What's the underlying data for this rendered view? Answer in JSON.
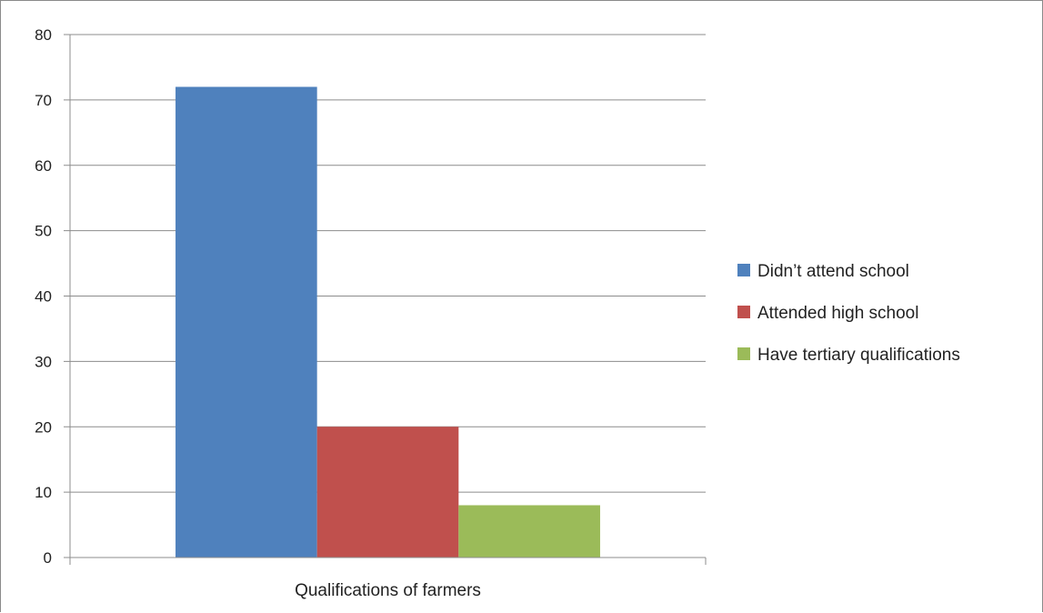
{
  "chart_data": {
    "type": "bar",
    "categories": [
      "Qualifications of farmers"
    ],
    "series": [
      {
        "name": "Didn’t attend school",
        "values": [
          72
        ],
        "color": "#4f81bd"
      },
      {
        "name": "Attended high school",
        "values": [
          20
        ],
        "color": "#c0504d"
      },
      {
        "name": "Have tertiary qualifications",
        "values": [
          8
        ],
        "color": "#9bbb59"
      }
    ],
    "title": "",
    "xlabel": "",
    "ylabel": "",
    "ylim": [
      0,
      80
    ],
    "yticks": [
      0,
      10,
      20,
      30,
      40,
      50,
      60,
      70,
      80
    ],
    "grid": true,
    "legend_position": "right"
  }
}
